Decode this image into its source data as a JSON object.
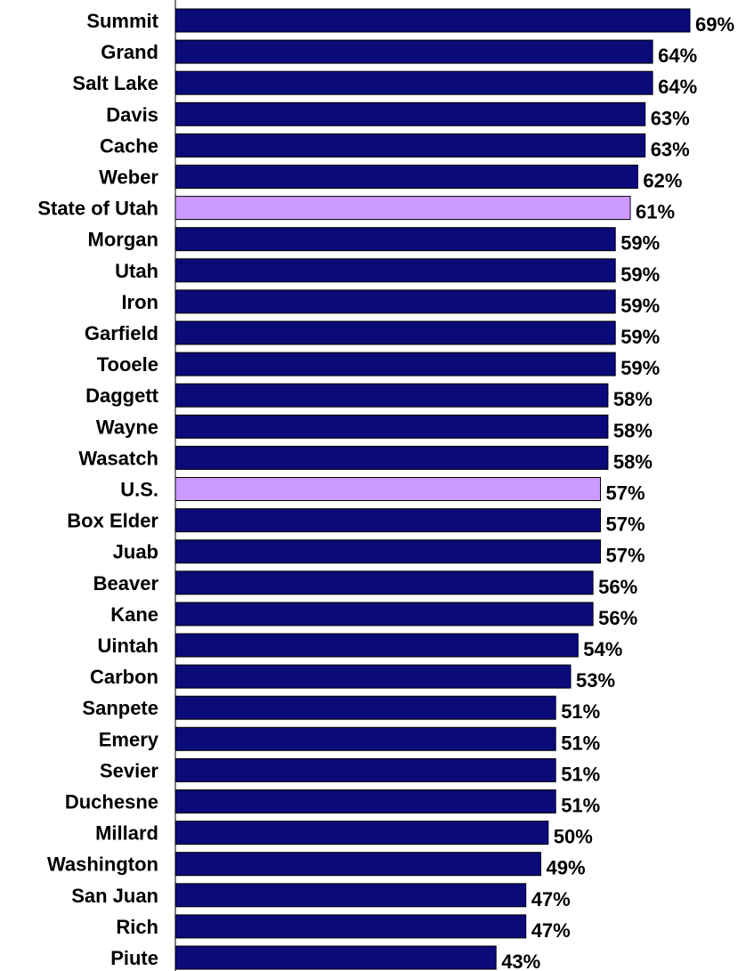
{
  "chart_data": {
    "type": "bar",
    "orientation": "horizontal",
    "categories": [
      "Summit",
      "Grand",
      "Salt Lake",
      "Davis",
      "Cache",
      "Weber",
      "State of Utah",
      "Morgan",
      "Utah",
      "Iron",
      "Garfield",
      "Tooele",
      "Daggett",
      "Wayne",
      "Wasatch",
      "U.S.",
      "Box Elder",
      "Juab",
      "Beaver",
      "Kane",
      "Uintah",
      "Carbon",
      "Sanpete",
      "Emery",
      "Sevier",
      "Duchesne",
      "Millard",
      "Washington",
      "San Juan",
      "Rich",
      "Piute"
    ],
    "values": [
      69,
      64,
      64,
      63,
      63,
      62,
      61,
      59,
      59,
      59,
      59,
      59,
      58,
      58,
      58,
      57,
      57,
      57,
      56,
      56,
      54,
      53,
      51,
      51,
      51,
      51,
      50,
      49,
      47,
      47,
      43
    ],
    "value_labels": [
      "69%",
      "64%",
      "64%",
      "63%",
      "63%",
      "62%",
      "61%",
      "59%",
      "59%",
      "59%",
      "59%",
      "59%",
      "58%",
      "58%",
      "58%",
      "57%",
      "57%",
      "57%",
      "56%",
      "56%",
      "54%",
      "53%",
      "51%",
      "51%",
      "51%",
      "51%",
      "50%",
      "49%",
      "47%",
      "47%",
      "43%"
    ],
    "highlighted": [
      "State of Utah",
      "U.S."
    ],
    "colors": {
      "bar": "#0a0a78",
      "highlight": "#cc99ff",
      "outline": "#000000"
    },
    "title": "",
    "xlabel": "",
    "ylabel": "",
    "grid": false,
    "legend": "none"
  }
}
